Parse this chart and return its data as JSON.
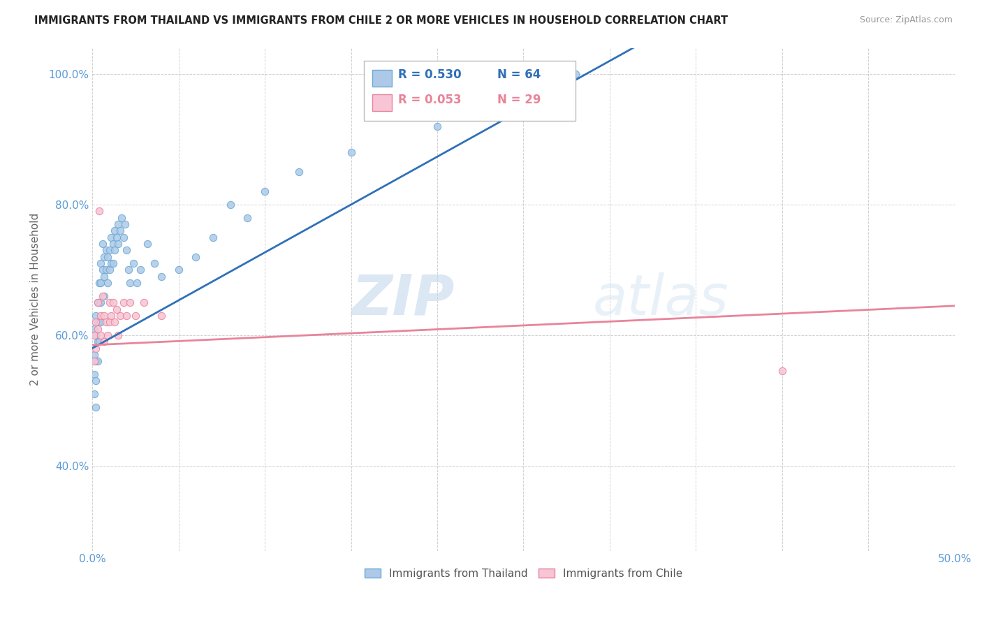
{
  "title": "IMMIGRANTS FROM THAILAND VS IMMIGRANTS FROM CHILE 2 OR MORE VEHICLES IN HOUSEHOLD CORRELATION CHART",
  "source": "Source: ZipAtlas.com",
  "ylabel": "2 or more Vehicles in Household",
  "xlim": [
    0.0,
    0.5
  ],
  "ylim": [
    0.27,
    1.04
  ],
  "xticks": [
    0.0,
    0.05,
    0.1,
    0.15,
    0.2,
    0.25,
    0.3,
    0.35,
    0.4,
    0.45,
    0.5
  ],
  "xticklabels": [
    "0.0%",
    "",
    "",
    "",
    "",
    "",
    "",
    "",
    "",
    "",
    "50.0%"
  ],
  "yticks": [
    0.4,
    0.6,
    0.8,
    1.0
  ],
  "yticklabels": [
    "40.0%",
    "60.0%",
    "80.0%",
    "100.0%"
  ],
  "thailand_color": "#aec9e8",
  "thailand_edge_color": "#6aaad4",
  "chile_color": "#f7c5d5",
  "chile_edge_color": "#e8849a",
  "trendline_thailand_color": "#3070b8",
  "trendline_chile_color": "#e8849a",
  "r_thailand": 0.53,
  "n_thailand": 64,
  "r_chile": 0.053,
  "n_chile": 29,
  "watermark_zip": "ZIP",
  "watermark_atlas": "atlas",
  "legend_thailand": "Immigrants from Thailand",
  "legend_chile": "Immigrants from Chile",
  "thailand_x": [
    0.001,
    0.001,
    0.001,
    0.001,
    0.002,
    0.002,
    0.002,
    0.002,
    0.002,
    0.003,
    0.003,
    0.003,
    0.003,
    0.004,
    0.004,
    0.004,
    0.004,
    0.005,
    0.005,
    0.005,
    0.005,
    0.006,
    0.006,
    0.007,
    0.007,
    0.007,
    0.008,
    0.008,
    0.009,
    0.009,
    0.01,
    0.01,
    0.011,
    0.011,
    0.012,
    0.012,
    0.013,
    0.013,
    0.014,
    0.015,
    0.015,
    0.016,
    0.017,
    0.018,
    0.019,
    0.02,
    0.021,
    0.022,
    0.024,
    0.026,
    0.028,
    0.032,
    0.036,
    0.04,
    0.05,
    0.06,
    0.07,
    0.08,
    0.09,
    0.1,
    0.12,
    0.15,
    0.2,
    0.28
  ],
  "thailand_y": [
    0.61,
    0.57,
    0.54,
    0.51,
    0.63,
    0.6,
    0.56,
    0.53,
    0.49,
    0.65,
    0.62,
    0.59,
    0.56,
    0.68,
    0.65,
    0.62,
    0.59,
    0.71,
    0.68,
    0.65,
    0.62,
    0.74,
    0.7,
    0.72,
    0.69,
    0.66,
    0.73,
    0.7,
    0.72,
    0.68,
    0.73,
    0.7,
    0.75,
    0.71,
    0.74,
    0.71,
    0.76,
    0.73,
    0.75,
    0.77,
    0.74,
    0.76,
    0.78,
    0.75,
    0.77,
    0.73,
    0.7,
    0.68,
    0.71,
    0.68,
    0.7,
    0.74,
    0.71,
    0.69,
    0.7,
    0.72,
    0.75,
    0.8,
    0.78,
    0.82,
    0.85,
    0.88,
    0.92,
    1.0
  ],
  "chile_x": [
    0.001,
    0.001,
    0.002,
    0.002,
    0.003,
    0.003,
    0.004,
    0.005,
    0.005,
    0.006,
    0.007,
    0.007,
    0.008,
    0.009,
    0.01,
    0.01,
    0.011,
    0.012,
    0.013,
    0.014,
    0.015,
    0.016,
    0.018,
    0.02,
    0.022,
    0.025,
    0.03,
    0.04,
    0.4
  ],
  "chile_y": [
    0.6,
    0.56,
    0.62,
    0.58,
    0.65,
    0.61,
    0.79,
    0.63,
    0.6,
    0.66,
    0.63,
    0.59,
    0.62,
    0.6,
    0.65,
    0.62,
    0.63,
    0.65,
    0.62,
    0.64,
    0.6,
    0.63,
    0.65,
    0.63,
    0.65,
    0.63,
    0.65,
    0.63,
    0.545
  ],
  "background_color": "#ffffff",
  "grid_color": "#cccccc",
  "title_color": "#222222",
  "axis_tick_color": "#5b9bd5",
  "marker_size": 55
}
